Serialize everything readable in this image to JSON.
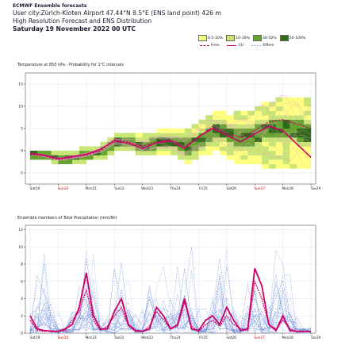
{
  "header": {
    "line1": "ECMWF Ensemble forecasts",
    "line2": "User city:Zürich-Kloten Airport 47.44°N 8.5°E (ENS land point) 426 m",
    "line3": "High Resolution Forecast and ENS Distribution",
    "line4": "Saturday 19 November 2022 00 UTC"
  },
  "legend": {
    "prob": [
      {
        "label": "0.5-10%",
        "color": "#ffff80"
      },
      {
        "label": "10-30%",
        "color": "#c8e676"
      },
      {
        "label": "30-50%",
        "color": "#66a332"
      },
      {
        "label": "50-100%",
        "color": "#2f6a1b"
      }
    ],
    "lines": [
      {
        "label": "Hres",
        "color": "#cc0066",
        "style": "dashed"
      },
      {
        "label": "Ctr",
        "color": "#cc0066",
        "style": "solid"
      },
      {
        "label": "EMem",
        "color": "#8fa8c8",
        "style": "dotted"
      }
    ]
  },
  "chart_data": [
    {
      "type": "area",
      "title": "Temperature at 850 hPa - Probability for 1°C intervals",
      "yticks": [
        -5,
        0,
        5,
        10,
        15
      ],
      "ylim": [
        -7.5,
        17.5
      ],
      "days": [
        "Sat19",
        "Sun20",
        "Mon21",
        "Tue22",
        "Wed23",
        "Thu24",
        "Fri25",
        "Sat26",
        "Sun27",
        "Mon28",
        "Tue29"
      ],
      "sunday_days": [
        "Sun20",
        "Sun27"
      ],
      "x_hours": [
        0,
        12,
        24,
        36,
        48,
        60,
        72,
        84,
        96,
        108,
        120,
        132,
        144,
        156,
        168,
        180,
        192,
        204,
        216,
        228,
        240
      ],
      "series": [
        {
          "name": "Hres",
          "values": [
            -0.8,
            -1.2,
            -2.0,
            -1.5,
            -1.0,
            0.0,
            2.5,
            2.0,
            1.0,
            2.0,
            2.5,
            1.0,
            3.0,
            5.5,
            4.0,
            3.0,
            4.5,
            6.5,
            7.0,
            6.0,
            5.0
          ]
        },
        {
          "name": "Ctr",
          "values": [
            -0.6,
            -1.0,
            -1.8,
            -1.3,
            -0.8,
            0.3,
            2.2,
            1.7,
            0.5,
            1.8,
            2.2,
            0.5,
            3.2,
            5.0,
            3.5,
            2.0,
            3.8,
            5.5,
            4.5,
            1.5,
            -1.5
          ]
        }
      ],
      "spread_lower": [
        -1.5,
        -2.0,
        -3.0,
        -2.5,
        -2.0,
        -1.5,
        0.5,
        0.0,
        -1.0,
        -0.5,
        -0.5,
        -2.5,
        -1.0,
        0.0,
        -2.0,
        -3.0,
        -3.0,
        -3.5,
        -3.5,
        -4.0,
        -4.0
      ],
      "spread_upper": [
        0.0,
        -0.5,
        -0.5,
        0.0,
        0.5,
        1.5,
        4.0,
        4.0,
        3.5,
        4.5,
        5.0,
        4.5,
        6.5,
        8.5,
        8.0,
        8.5,
        9.5,
        11.0,
        12.0,
        11.5,
        11.0
      ],
      "core_lower": [
        -1.0,
        -1.5,
        -2.3,
        -1.8,
        -1.3,
        -0.3,
        1.5,
        1.2,
        0.3,
        1.3,
        1.5,
        0.0,
        2.0,
        4.0,
        2.5,
        1.5,
        2.5,
        4.0,
        4.0,
        3.0,
        2.0
      ],
      "core_upper": [
        -0.5,
        -0.9,
        -1.6,
        -1.2,
        -0.7,
        0.5,
        2.5,
        2.2,
        1.5,
        2.5,
        2.8,
        2.0,
        3.8,
        5.5,
        4.5,
        4.0,
        5.0,
        6.5,
        6.8,
        6.0,
        5.5
      ]
    },
    {
      "type": "line",
      "title": "Ensemble members of Total Precipitation (mm/6h)",
      "yticks": [
        0,
        2,
        4,
        6,
        8,
        10,
        12
      ],
      "ylim": [
        0,
        12.5
      ],
      "days": [
        "Sat19",
        "Sun20",
        "Mon21",
        "Tue22",
        "Wed23",
        "Thu24",
        "Fri25",
        "Sat26",
        "Sun27",
        "Mon28",
        "Tue29"
      ],
      "sunday_days": [
        "Sun20",
        "Sun27"
      ],
      "x_hours": [
        0,
        6,
        12,
        18,
        24,
        30,
        36,
        42,
        48,
        54,
        60,
        66,
        72,
        78,
        84,
        90,
        96,
        102,
        108,
        114,
        120,
        126,
        132,
        138,
        144,
        150,
        156,
        162,
        168,
        174,
        180,
        186,
        192,
        198,
        204,
        210,
        216,
        222,
        228,
        234,
        240
      ],
      "series": [
        {
          "name": "Hres",
          "values": [
            2.0,
            0.5,
            0.3,
            0.2,
            0.2,
            0.5,
            1.0,
            3.0,
            7.0,
            2.0,
            0.5,
            0.5,
            2.5,
            4.0,
            1.0,
            0.3,
            0.2,
            0.5,
            3.0,
            2.0,
            0.5,
            1.0,
            4.0,
            0.5,
            0.3,
            1.5,
            2.0,
            1.0,
            3.0,
            1.5,
            0.3,
            0.5,
            7.5,
            5.5,
            1.0,
            0.3,
            2.0,
            0.3,
            0.2,
            0.2,
            0.2
          ]
        },
        {
          "name": "Ctr",
          "values": [
            1.5,
            0.3,
            0.2,
            0.3,
            0.2,
            0.3,
            1.5,
            2.5,
            5.0,
            1.5,
            0.3,
            0.8,
            2.0,
            3.0,
            0.8,
            0.2,
            0.2,
            0.8,
            2.5,
            1.5,
            0.5,
            0.8,
            3.5,
            0.8,
            0.2,
            1.0,
            1.5,
            0.8,
            2.0,
            1.0,
            0.5,
            0.3,
            6.0,
            4.0,
            1.0,
            0.5,
            1.5,
            0.5,
            0.2,
            0.2,
            0.2
          ]
        }
      ]
    }
  ]
}
